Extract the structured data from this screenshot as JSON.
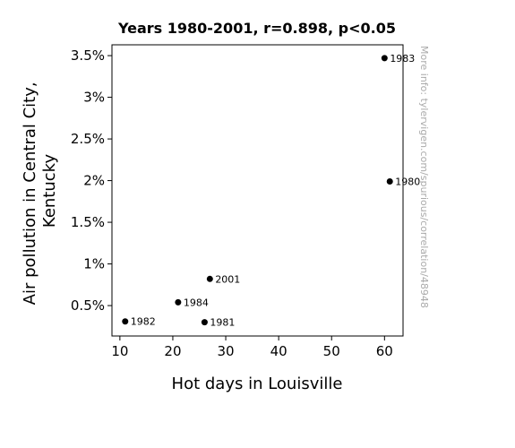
{
  "chart_data": {
    "type": "scatter",
    "title": "Years 1980-2001, r=0.898, p<0.05",
    "xlabel": "Hot days in Louisville",
    "ylabel_lines": [
      "Air pollution in Central City,",
      "Kentucky"
    ],
    "xlim": [
      8.5,
      63.5
    ],
    "ylim": [
      0.135,
      3.63
    ],
    "xticks": [
      10,
      20,
      30,
      40,
      50,
      60
    ],
    "xtick_labels": [
      "10",
      "20",
      "30",
      "40",
      "50",
      "60"
    ],
    "yticks": [
      0.5,
      1,
      1.5,
      2,
      2.5,
      3,
      3.5
    ],
    "ytick_labels": [
      "0.5%",
      "1%",
      "1.5%",
      "2%",
      "2.5%",
      "3%",
      "3.5%"
    ],
    "grid": false,
    "points": [
      {
        "label": "1983",
        "x": 60,
        "y": 3.47
      },
      {
        "label": "1980",
        "x": 61,
        "y": 1.99
      },
      {
        "label": "2001",
        "x": 27,
        "y": 0.82
      },
      {
        "label": "1984",
        "x": 21,
        "y": 0.54
      },
      {
        "label": "1982",
        "x": 11,
        "y": 0.31
      },
      {
        "label": "1981",
        "x": 26,
        "y": 0.3
      }
    ],
    "point_color": "#000000"
  },
  "watermark": "More info: tylervigen.com/spurious/correlation/48948"
}
